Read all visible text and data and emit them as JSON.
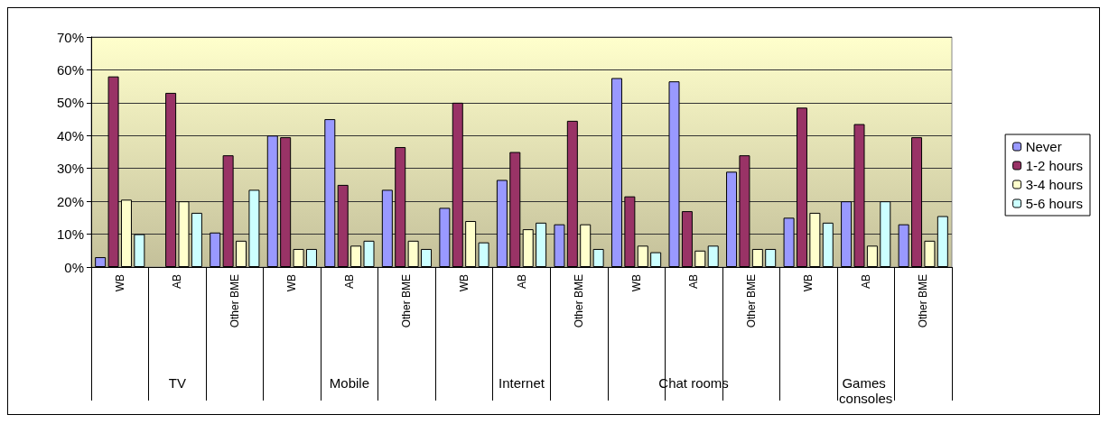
{
  "chart_data": {
    "type": "bar",
    "categories": [
      "WB",
      "AB",
      "Other BME",
      "WB",
      "AB",
      "Other BME",
      "WB",
      "AB",
      "Other BME",
      "WB",
      "AB",
      "Other BME",
      "WB",
      "AB",
      "Other BME"
    ],
    "annotations": [
      "TV",
      "Mobile",
      "Internet",
      "Chat rooms",
      "Games consoles"
    ],
    "series": [
      {
        "name": "Never",
        "color": "#9999ff",
        "values": [
          3,
          null,
          10.5,
          40,
          45,
          23.5,
          18,
          26.5,
          13,
          57.5,
          56.5,
          29,
          15,
          20,
          13
        ]
      },
      {
        "name": "1-2 hours",
        "color": "#993366",
        "values": [
          58,
          53,
          34,
          39.5,
          25,
          36.5,
          50,
          35,
          44.5,
          21.5,
          17,
          34,
          48.5,
          43.5,
          39.5
        ]
      },
      {
        "name": "3-4 hours",
        "color": "#ffffcc",
        "values": [
          20.5,
          20,
          8,
          5.5,
          6.5,
          8,
          14,
          11.5,
          13,
          6.5,
          5,
          5.5,
          16.5,
          6.5,
          8
        ]
      },
      {
        "name": "5-6 hours",
        "color": "#ccffff",
        "values": [
          10,
          16.5,
          23.5,
          5.5,
          8,
          5.5,
          7.5,
          13.5,
          5.5,
          4.5,
          6.5,
          5.5,
          13.5,
          20,
          15.5
        ]
      }
    ],
    "ylim": [
      0,
      70
    ],
    "yticks": [
      {
        "value": 0,
        "label": "0%"
      },
      {
        "value": 10,
        "label": "10%"
      },
      {
        "value": 20,
        "label": "20%"
      },
      {
        "value": 30,
        "label": "30%"
      },
      {
        "value": 40,
        "label": "40%"
      },
      {
        "value": 50,
        "label": "50%"
      },
      {
        "value": 60,
        "label": "60%"
      },
      {
        "value": 70,
        "label": "70%"
      }
    ],
    "grid": "y",
    "legend": "right"
  }
}
